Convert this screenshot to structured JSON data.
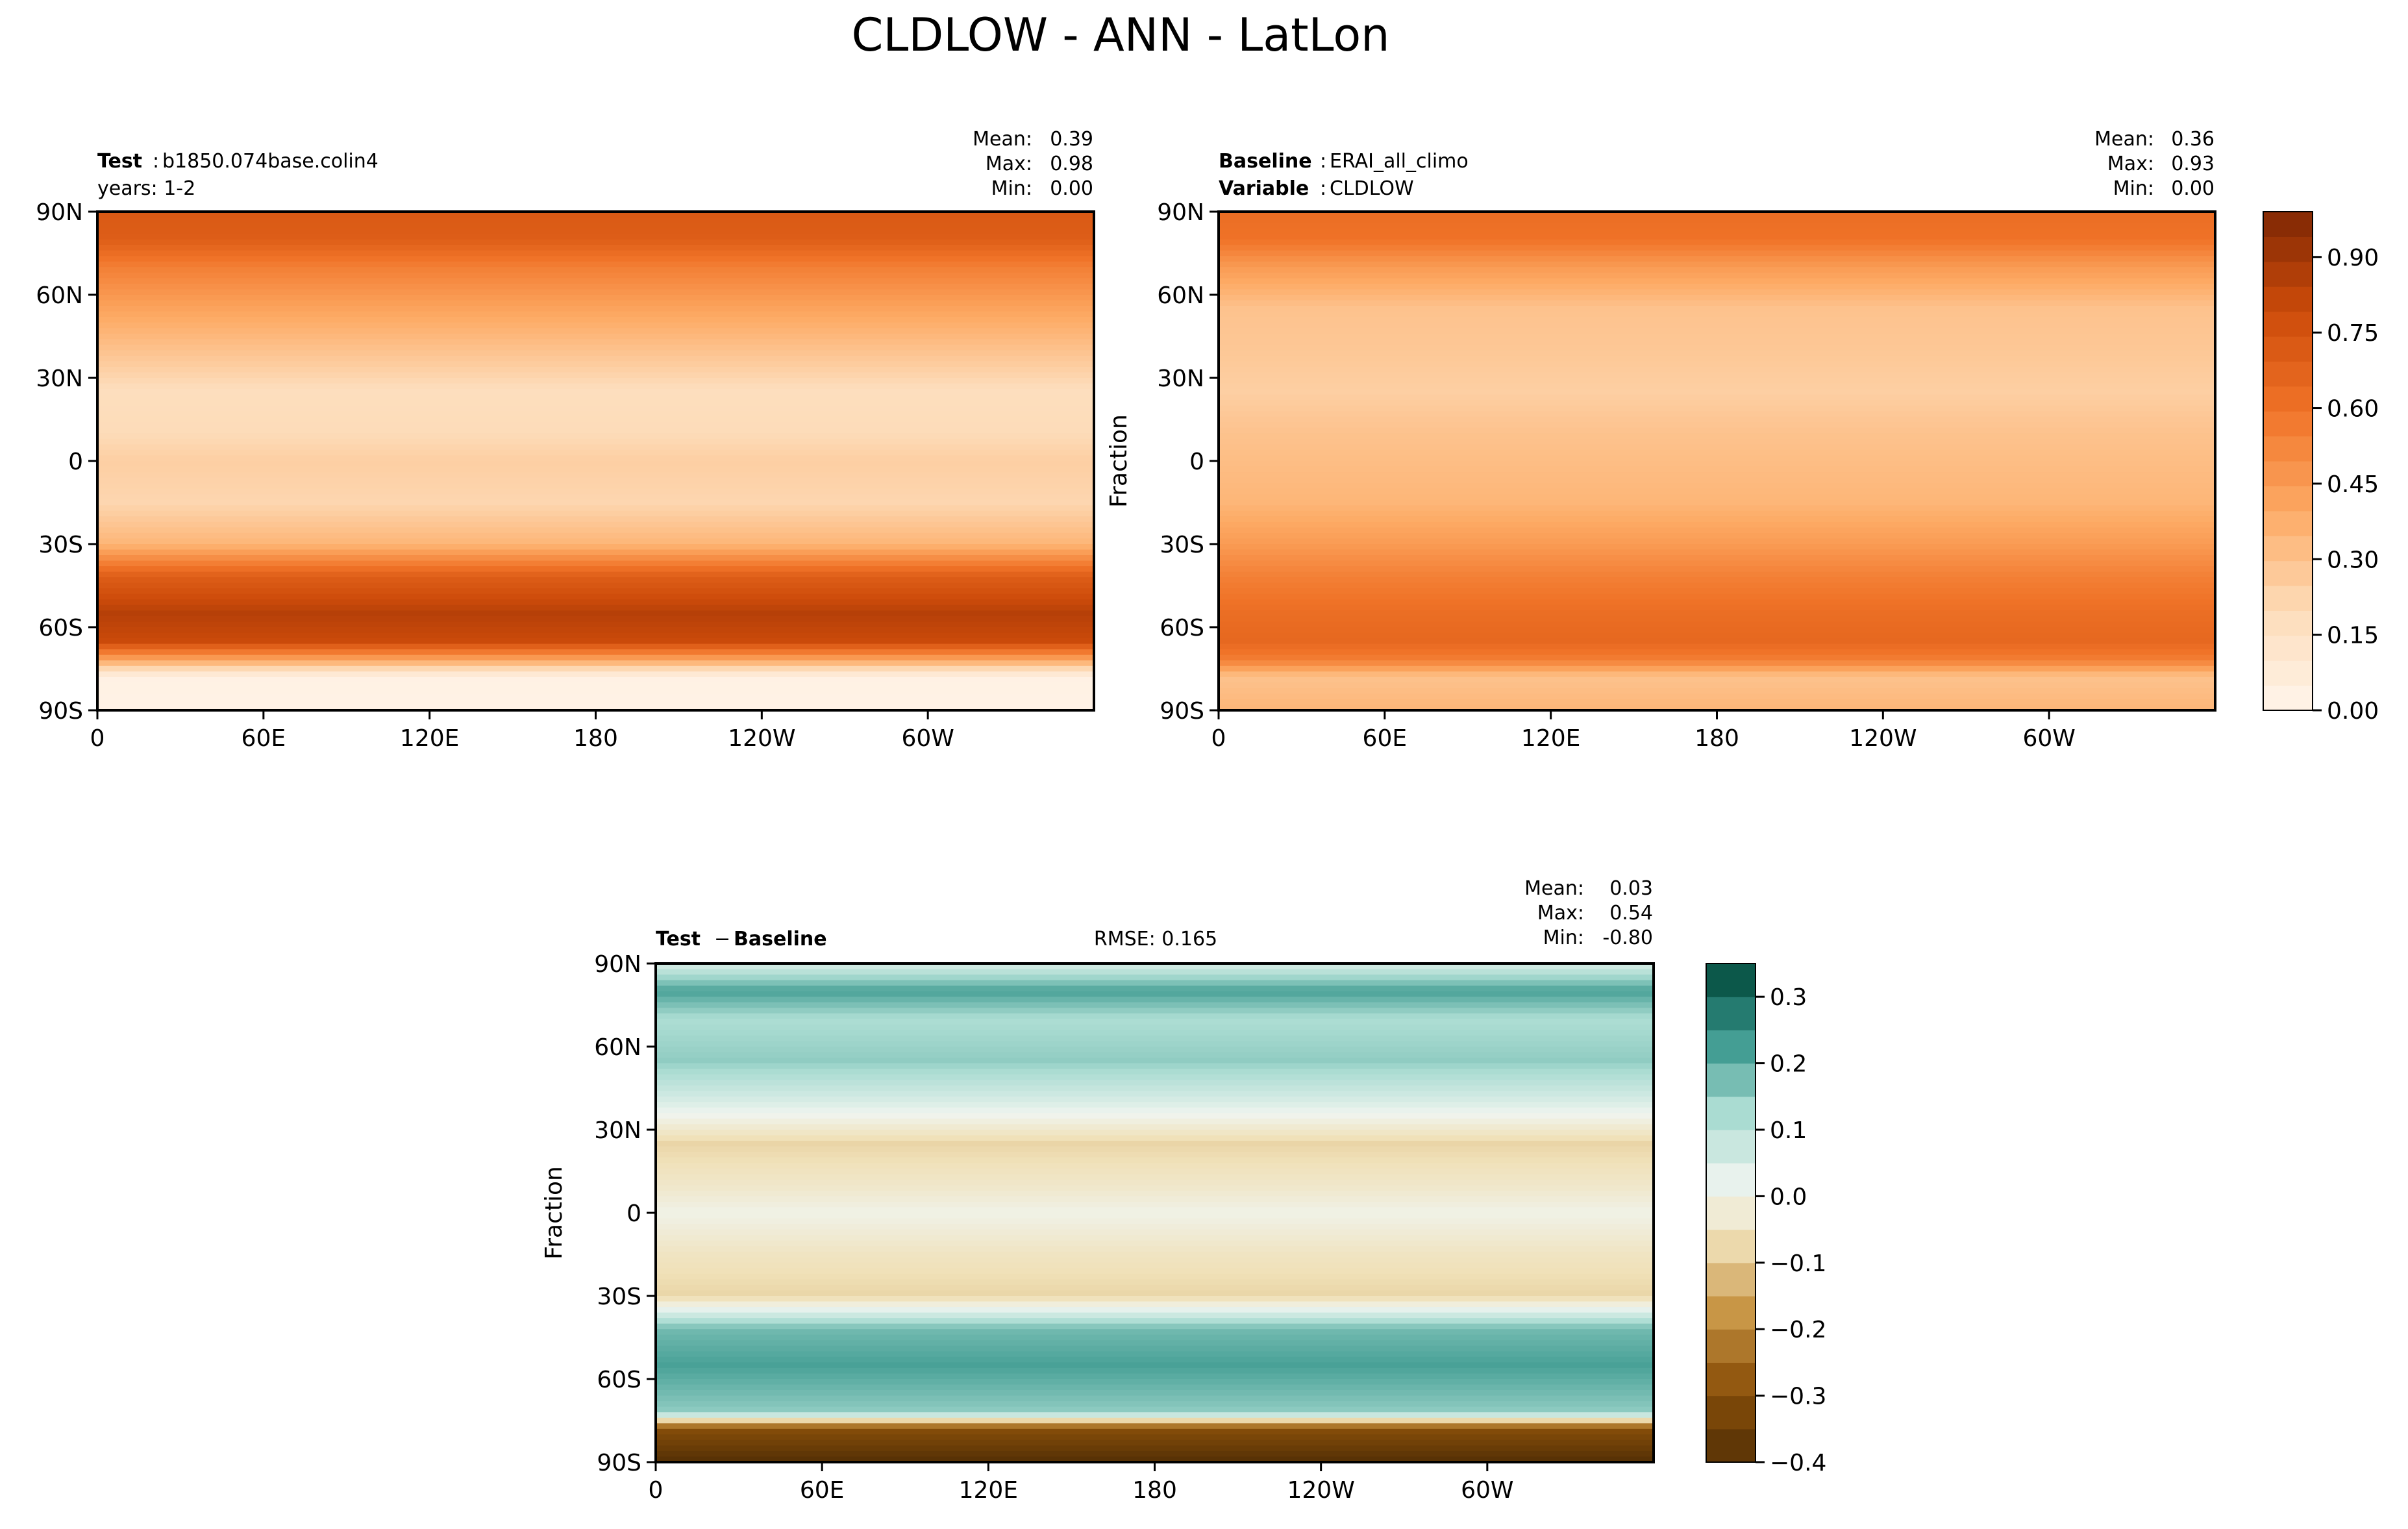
{
  "figure_title": "CLDLOW - ANN - LatLon",
  "chart_data": [
    {
      "type": "heatmap",
      "panel": "test",
      "label_bold": "Test",
      "label_value": "b1850.074base.colin4",
      "label_line2": "years: 1-2",
      "ylabel": "",
      "stats": {
        "mean_label": "Mean:",
        "mean": "0.39",
        "max_label": "Max:",
        "max": "0.98",
        "min_label": "Min:",
        "min": "0.00"
      },
      "x_ticks": [
        "0",
        "60E",
        "120E",
        "180",
        "120W",
        "60W"
      ],
      "y_ticks": [
        "90N",
        "60N",
        "30N",
        "0",
        "30S",
        "60S",
        "90S"
      ],
      "xlim": [
        0,
        360
      ],
      "ylim": [
        -90,
        90
      ],
      "colormap": "Oranges",
      "zonal_bands": [
        {
          "lat": 90,
          "value": 0.72
        },
        {
          "lat": 80,
          "value": 0.7
        },
        {
          "lat": 70,
          "value": 0.55
        },
        {
          "lat": 55,
          "value": 0.42
        },
        {
          "lat": 40,
          "value": 0.3
        },
        {
          "lat": 25,
          "value": 0.18
        },
        {
          "lat": 10,
          "value": 0.2
        },
        {
          "lat": 0,
          "value": 0.25
        },
        {
          "lat": -15,
          "value": 0.22
        },
        {
          "lat": -30,
          "value": 0.35
        },
        {
          "lat": -42,
          "value": 0.7
        },
        {
          "lat": -55,
          "value": 0.85
        },
        {
          "lat": -65,
          "value": 0.8
        },
        {
          "lat": -72,
          "value": 0.4
        },
        {
          "lat": -78,
          "value": 0.03
        },
        {
          "lat": -90,
          "value": 0.02
        }
      ]
    },
    {
      "type": "heatmap",
      "panel": "baseline",
      "label_bold": "Baseline",
      "label_value": "ERAI_all_climo",
      "label2_bold": "Variable",
      "label2_value": "CLDLOW",
      "ylabel": "Fraction",
      "stats": {
        "mean_label": "Mean:",
        "mean": "0.36",
        "max_label": "Max:",
        "max": "0.93",
        "min_label": "Min:",
        "min": "0.00"
      },
      "x_ticks": [
        "0",
        "60E",
        "120E",
        "180",
        "120W",
        "60W"
      ],
      "y_ticks": [
        "90N",
        "60N",
        "30N",
        "0",
        "30S",
        "60S",
        "90S"
      ],
      "xlim": [
        0,
        360
      ],
      "ylim": [
        -90,
        90
      ],
      "colormap": "Oranges",
      "colorbar": {
        "min": 0.0,
        "max": 0.99,
        "ticks": [
          "0.00",
          "0.15",
          "0.30",
          "0.45",
          "0.60",
          "0.75",
          "0.90"
        ],
        "tick_values": [
          0.0,
          0.15,
          0.3,
          0.45,
          0.6,
          0.75,
          0.9
        ],
        "levels": 20
      },
      "zonal_bands": [
        {
          "lat": 90,
          "value": 0.62
        },
        {
          "lat": 80,
          "value": 0.6
        },
        {
          "lat": 70,
          "value": 0.45
        },
        {
          "lat": 55,
          "value": 0.3
        },
        {
          "lat": 40,
          "value": 0.28
        },
        {
          "lat": 25,
          "value": 0.25
        },
        {
          "lat": 10,
          "value": 0.3
        },
        {
          "lat": 0,
          "value": 0.32
        },
        {
          "lat": -15,
          "value": 0.35
        },
        {
          "lat": -30,
          "value": 0.45
        },
        {
          "lat": -42,
          "value": 0.55
        },
        {
          "lat": -55,
          "value": 0.62
        },
        {
          "lat": -65,
          "value": 0.65
        },
        {
          "lat": -72,
          "value": 0.55
        },
        {
          "lat": -78,
          "value": 0.3
        },
        {
          "lat": -90,
          "value": 0.35
        }
      ]
    },
    {
      "type": "heatmap",
      "panel": "difference",
      "label_bold": "Test",
      "label_minus": "−",
      "label_bold2": "Baseline",
      "rmse": "RMSE: 0.165",
      "ylabel": "Fraction",
      "stats": {
        "mean_label": "Mean:",
        "mean": "0.03",
        "max_label": "Max:",
        "max": "0.54",
        "min_label": "Min:",
        "min": "-0.80"
      },
      "x_ticks": [
        "0",
        "60E",
        "120E",
        "180",
        "120W",
        "60W"
      ],
      "y_ticks": [
        "90N",
        "60N",
        "30N",
        "0",
        "30S",
        "60S",
        "90S"
      ],
      "xlim": [
        0,
        360
      ],
      "ylim": [
        -90,
        90
      ],
      "colormap": "BrBG",
      "colorbar": {
        "min": -0.4,
        "max": 0.35,
        "ticks": [
          "0.3",
          "0.2",
          "0.1",
          "0.0",
          "−0.1",
          "−0.2",
          "−0.3",
          "−0.4"
        ],
        "tick_values": [
          0.3,
          0.2,
          0.1,
          0.0,
          -0.1,
          -0.2,
          -0.3,
          -0.4
        ],
        "levels": 15
      },
      "zonal_bands": [
        {
          "lat": 90,
          "value": 0.05
        },
        {
          "lat": 80,
          "value": 0.22
        },
        {
          "lat": 70,
          "value": 0.12
        },
        {
          "lat": 55,
          "value": 0.15
        },
        {
          "lat": 40,
          "value": 0.05
        },
        {
          "lat": 25,
          "value": -0.08
        },
        {
          "lat": 10,
          "value": -0.04
        },
        {
          "lat": 0,
          "value": 0.0
        },
        {
          "lat": -15,
          "value": -0.05
        },
        {
          "lat": -30,
          "value": -0.08
        },
        {
          "lat": -42,
          "value": 0.18
        },
        {
          "lat": -55,
          "value": 0.22
        },
        {
          "lat": -65,
          "value": 0.18
        },
        {
          "lat": -72,
          "value": 0.15
        },
        {
          "lat": -78,
          "value": -0.3
        },
        {
          "lat": -90,
          "value": -0.4
        }
      ]
    }
  ]
}
